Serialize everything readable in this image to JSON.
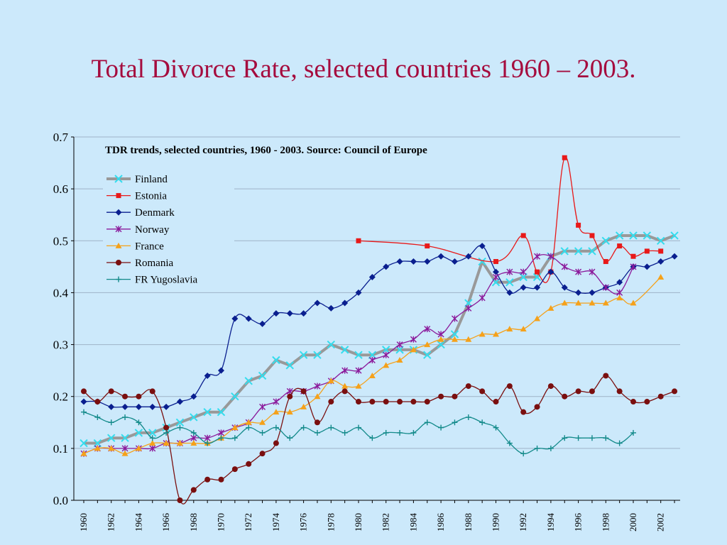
{
  "slide": {
    "title": "Total Divorce Rate, selected countries 1960 – 2003."
  },
  "colors": {
    "background": "#cce9fb",
    "title": "#a50c3e",
    "grid": "#9fb3c8"
  },
  "chart_data": {
    "type": "line",
    "title": "TDR trends, selected countries, 1960 - 2003. Source: Council of Europe",
    "xlabel": "",
    "ylabel": "",
    "xlim": [
      1960,
      2003
    ],
    "ylim": [
      0,
      0.7
    ],
    "y_ticks": [
      "0.0",
      "0.1",
      "0.2",
      "0.3",
      "0.4",
      "0.5",
      "0.6",
      "0.7"
    ],
    "x_ticks": [
      "1960",
      "1962",
      "1964",
      "1966",
      "1968",
      "1970",
      "1972",
      "1974",
      "1976",
      "1978",
      "1980",
      "1982",
      "1984",
      "1986",
      "1988",
      "1990",
      "1992",
      "1994",
      "1996",
      "1998",
      "2000",
      "2002"
    ],
    "grid": "horizontal",
    "legend": "top-left",
    "series": [
      {
        "name": "Finland",
        "color": "#999999",
        "marker": "x-cross",
        "marker_color": "#33ddee",
        "points": [
          [
            1960,
            0.11
          ],
          [
            1961,
            0.11
          ],
          [
            1962,
            0.12
          ],
          [
            1963,
            0.12
          ],
          [
            1964,
            0.13
          ],
          [
            1965,
            0.13
          ],
          [
            1966,
            0.14
          ],
          [
            1967,
            0.15
          ],
          [
            1968,
            0.16
          ],
          [
            1969,
            0.17
          ],
          [
            1970,
            0.17
          ],
          [
            1971,
            0.2
          ],
          [
            1972,
            0.23
          ],
          [
            1973,
            0.24
          ],
          [
            1974,
            0.27
          ],
          [
            1975,
            0.26
          ],
          [
            1976,
            0.28
          ],
          [
            1977,
            0.28
          ],
          [
            1978,
            0.3
          ],
          [
            1979,
            0.29
          ],
          [
            1980,
            0.28
          ],
          [
            1981,
            0.28
          ],
          [
            1982,
            0.29
          ],
          [
            1983,
            0.29
          ],
          [
            1984,
            0.29
          ],
          [
            1985,
            0.28
          ],
          [
            1986,
            0.3
          ],
          [
            1987,
            0.32
          ],
          [
            1988,
            0.38
          ],
          [
            1989,
            0.46
          ],
          [
            1990,
            0.42
          ],
          [
            1991,
            0.42
          ],
          [
            1992,
            0.43
          ],
          [
            1993,
            0.43
          ],
          [
            1994,
            0.47
          ],
          [
            1995,
            0.48
          ],
          [
            1996,
            0.48
          ],
          [
            1997,
            0.48
          ],
          [
            1998,
            0.5
          ],
          [
            1999,
            0.51
          ],
          [
            2000,
            0.51
          ],
          [
            2001,
            0.51
          ],
          [
            2002,
            0.5
          ],
          [
            2003,
            0.51
          ]
        ]
      },
      {
        "name": "Estonia",
        "color": "#e81919",
        "marker": "square",
        "points": [
          [
            1980,
            0.5
          ],
          [
            1985,
            0.49
          ],
          [
            1990,
            0.46
          ],
          [
            1992,
            0.51
          ],
          [
            1993,
            0.44
          ],
          [
            1994,
            0.44
          ],
          [
            1995,
            0.66
          ],
          [
            1996,
            0.53
          ],
          [
            1997,
            0.51
          ],
          [
            1998,
            0.46
          ],
          [
            1999,
            0.49
          ],
          [
            2000,
            0.47
          ],
          [
            2001,
            0.48
          ],
          [
            2002,
            0.48
          ]
        ]
      },
      {
        "name": "Denmark",
        "color": "#0a1f8f",
        "marker": "diamond",
        "points": [
          [
            1960,
            0.19
          ],
          [
            1961,
            0.19
          ],
          [
            1962,
            0.18
          ],
          [
            1963,
            0.18
          ],
          [
            1964,
            0.18
          ],
          [
            1965,
            0.18
          ],
          [
            1966,
            0.18
          ],
          [
            1967,
            0.19
          ],
          [
            1968,
            0.2
          ],
          [
            1969,
            0.24
          ],
          [
            1970,
            0.25
          ],
          [
            1971,
            0.35
          ],
          [
            1972,
            0.35
          ],
          [
            1973,
            0.34
          ],
          [
            1974,
            0.36
          ],
          [
            1975,
            0.36
          ],
          [
            1976,
            0.36
          ],
          [
            1977,
            0.38
          ],
          [
            1978,
            0.37
          ],
          [
            1979,
            0.38
          ],
          [
            1980,
            0.4
          ],
          [
            1981,
            0.43
          ],
          [
            1982,
            0.45
          ],
          [
            1983,
            0.46
          ],
          [
            1984,
            0.46
          ],
          [
            1985,
            0.46
          ],
          [
            1986,
            0.47
          ],
          [
            1987,
            0.46
          ],
          [
            1988,
            0.47
          ],
          [
            1989,
            0.49
          ],
          [
            1990,
            0.44
          ],
          [
            1991,
            0.4
          ],
          [
            1992,
            0.41
          ],
          [
            1993,
            0.41
          ],
          [
            1994,
            0.44
          ],
          [
            1995,
            0.41
          ],
          [
            1996,
            0.4
          ],
          [
            1997,
            0.4
          ],
          [
            1998,
            0.41
          ],
          [
            1999,
            0.42
          ],
          [
            2000,
            0.45
          ],
          [
            2001,
            0.45
          ],
          [
            2002,
            0.46
          ],
          [
            2003,
            0.47
          ]
        ]
      },
      {
        "name": "Norway",
        "color": "#8b1a9b",
        "marker": "asterisk",
        "points": [
          [
            1960,
            0.09
          ],
          [
            1961,
            0.1
          ],
          [
            1962,
            0.1
          ],
          [
            1963,
            0.1
          ],
          [
            1964,
            0.1
          ],
          [
            1965,
            0.1
          ],
          [
            1966,
            0.11
          ],
          [
            1967,
            0.11
          ],
          [
            1968,
            0.12
          ],
          [
            1969,
            0.12
          ],
          [
            1970,
            0.13
          ],
          [
            1971,
            0.14
          ],
          [
            1972,
            0.15
          ],
          [
            1973,
            0.18
          ],
          [
            1974,
            0.19
          ],
          [
            1975,
            0.21
          ],
          [
            1976,
            0.21
          ],
          [
            1977,
            0.22
          ],
          [
            1978,
            0.23
          ],
          [
            1979,
            0.25
          ],
          [
            1980,
            0.25
          ],
          [
            1981,
            0.27
          ],
          [
            1982,
            0.28
          ],
          [
            1983,
            0.3
          ],
          [
            1984,
            0.31
          ],
          [
            1985,
            0.33
          ],
          [
            1986,
            0.32
          ],
          [
            1987,
            0.35
          ],
          [
            1988,
            0.37
          ],
          [
            1989,
            0.39
          ],
          [
            1990,
            0.43
          ],
          [
            1991,
            0.44
          ],
          [
            1992,
            0.44
          ],
          [
            1993,
            0.47
          ],
          [
            1994,
            0.47
          ],
          [
            1995,
            0.45
          ],
          [
            1996,
            0.44
          ],
          [
            1997,
            0.44
          ],
          [
            1998,
            0.41
          ],
          [
            1999,
            0.4
          ],
          [
            2000,
            0.45
          ]
        ]
      },
      {
        "name": "France",
        "color": "#f5a11a",
        "marker": "triangle",
        "points": [
          [
            1960,
            0.09
          ],
          [
            1961,
            0.1
          ],
          [
            1962,
            0.1
          ],
          [
            1963,
            0.09
          ],
          [
            1964,
            0.1
          ],
          [
            1965,
            0.11
          ],
          [
            1966,
            0.11
          ],
          [
            1967,
            0.11
          ],
          [
            1968,
            0.11
          ],
          [
            1969,
            0.11
          ],
          [
            1970,
            0.12
          ],
          [
            1971,
            0.14
          ],
          [
            1972,
            0.15
          ],
          [
            1973,
            0.15
          ],
          [
            1974,
            0.17
          ],
          [
            1975,
            0.17
          ],
          [
            1976,
            0.18
          ],
          [
            1977,
            0.2
          ],
          [
            1978,
            0.23
          ],
          [
            1979,
            0.22
          ],
          [
            1980,
            0.22
          ],
          [
            1981,
            0.24
          ],
          [
            1982,
            0.26
          ],
          [
            1983,
            0.27
          ],
          [
            1984,
            0.29
          ],
          [
            1985,
            0.3
          ],
          [
            1986,
            0.31
          ],
          [
            1987,
            0.31
          ],
          [
            1988,
            0.31
          ],
          [
            1989,
            0.32
          ],
          [
            1990,
            0.32
          ],
          [
            1991,
            0.33
          ],
          [
            1992,
            0.33
          ],
          [
            1993,
            0.35
          ],
          [
            1994,
            0.37
          ],
          [
            1995,
            0.38
          ],
          [
            1996,
            0.38
          ],
          [
            1997,
            0.38
          ],
          [
            1998,
            0.38
          ],
          [
            1999,
            0.39
          ],
          [
            2000,
            0.38
          ],
          [
            2002,
            0.43
          ]
        ]
      },
      {
        "name": "Romania",
        "color": "#7a0f0f",
        "marker": "circle",
        "points": [
          [
            1960,
            0.21
          ],
          [
            1961,
            0.19
          ],
          [
            1962,
            0.21
          ],
          [
            1963,
            0.2
          ],
          [
            1964,
            0.2
          ],
          [
            1965,
            0.21
          ],
          [
            1966,
            0.14
          ],
          [
            1967,
            0.0
          ],
          [
            1968,
            0.02
          ],
          [
            1969,
            0.04
          ],
          [
            1970,
            0.04
          ],
          [
            1971,
            0.06
          ],
          [
            1972,
            0.07
          ],
          [
            1973,
            0.09
          ],
          [
            1974,
            0.11
          ],
          [
            1975,
            0.2
          ],
          [
            1976,
            0.21
          ],
          [
            1977,
            0.15
          ],
          [
            1978,
            0.19
          ],
          [
            1979,
            0.21
          ],
          [
            1980,
            0.19
          ],
          [
            1981,
            0.19
          ],
          [
            1982,
            0.19
          ],
          [
            1983,
            0.19
          ],
          [
            1984,
            0.19
          ],
          [
            1985,
            0.19
          ],
          [
            1986,
            0.2
          ],
          [
            1987,
            0.2
          ],
          [
            1988,
            0.22
          ],
          [
            1989,
            0.21
          ],
          [
            1990,
            0.19
          ],
          [
            1991,
            0.22
          ],
          [
            1992,
            0.17
          ],
          [
            1993,
            0.18
          ],
          [
            1994,
            0.22
          ],
          [
            1995,
            0.2
          ],
          [
            1996,
            0.21
          ],
          [
            1997,
            0.21
          ],
          [
            1998,
            0.24
          ],
          [
            1999,
            0.21
          ],
          [
            2000,
            0.19
          ],
          [
            2001,
            0.19
          ],
          [
            2002,
            0.2
          ],
          [
            2003,
            0.21
          ]
        ]
      },
      {
        "name": "FR Yugoslavia",
        "color": "#138a8a",
        "marker": "plus",
        "points": [
          [
            1960,
            0.17
          ],
          [
            1961,
            0.16
          ],
          [
            1962,
            0.15
          ],
          [
            1963,
            0.16
          ],
          [
            1964,
            0.15
          ],
          [
            1965,
            0.12
          ],
          [
            1966,
            0.13
          ],
          [
            1967,
            0.14
          ],
          [
            1968,
            0.13
          ],
          [
            1969,
            0.11
          ],
          [
            1970,
            0.12
          ],
          [
            1971,
            0.12
          ],
          [
            1972,
            0.14
          ],
          [
            1973,
            0.13
          ],
          [
            1974,
            0.14
          ],
          [
            1975,
            0.12
          ],
          [
            1976,
            0.14
          ],
          [
            1977,
            0.13
          ],
          [
            1978,
            0.14
          ],
          [
            1979,
            0.13
          ],
          [
            1980,
            0.14
          ],
          [
            1981,
            0.12
          ],
          [
            1982,
            0.13
          ],
          [
            1983,
            0.13
          ],
          [
            1984,
            0.13
          ],
          [
            1985,
            0.15
          ],
          [
            1986,
            0.14
          ],
          [
            1987,
            0.15
          ],
          [
            1988,
            0.16
          ],
          [
            1989,
            0.15
          ],
          [
            1990,
            0.14
          ],
          [
            1991,
            0.11
          ],
          [
            1992,
            0.09
          ],
          [
            1993,
            0.1
          ],
          [
            1994,
            0.1
          ],
          [
            1995,
            0.12
          ],
          [
            1996,
            0.12
          ],
          [
            1997,
            0.12
          ],
          [
            1998,
            0.12
          ],
          [
            1999,
            0.11
          ],
          [
            2000,
            0.13
          ]
        ]
      }
    ]
  }
}
